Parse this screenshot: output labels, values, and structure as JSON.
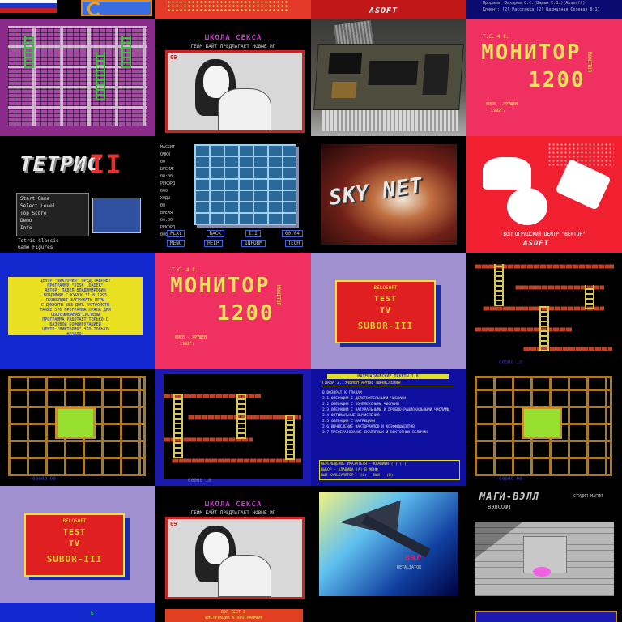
{
  "row0": {
    "top_right_line1": "Продажа: Захаров С.С.(Вадим Е.В.)(Abssoft)",
    "top_right_line2": "Клиент: [2] Расставка [2] Шахматная Сетевая 8:1)",
    "absoft_logo": "ASOFT"
  },
  "school_screen": {
    "header": "ШКОЛА СЕКСА",
    "subtitle": "ГЕЙМ БАЙТ ПРЕДЛАГАЕТ НОВЫЕ ИГ",
    "corner_num": "69"
  },
  "monitor_screen": {
    "top_label": "T.C. 4 C.",
    "title": "МОНИТОР",
    "number": "1200",
    "side_text": "MONITOR",
    "footer1": "КИЕВ - ХРУЩЕВ",
    "footer2": "1992Г."
  },
  "tetris_screen": {
    "logo": "ТЕТРИС",
    "roman": "II",
    "menu_items": [
      "Start Game",
      "Select Level",
      "Top Score",
      "Demo",
      "Info"
    ],
    "footer1": "Tetris Classic",
    "footer2": "Game Figures"
  },
  "puzzle_screen": {
    "side_labels": [
      "МАССИТ",
      "ОЧКИ",
      "ВРЕМЯ",
      "РЕКОРД",
      "ХОДЫ",
      "ВРЕМЯ",
      "РЕКОРД"
    ],
    "side_values": [
      "",
      "00",
      "00:00",
      "000",
      "00",
      "00:00",
      "000"
    ],
    "buttons_row1": [
      "PLAY",
      "BACK",
      "III",
      "00:04"
    ],
    "buttons_row2": [
      "MENU",
      "HELP",
      "INFORM",
      "TECH"
    ]
  },
  "skynet_screen": {
    "title": "SKY NET"
  },
  "vector_screen": {
    "footer": "ВОЛГОГРАДСКИЙ ЦЕНТР \"ВЕКТОР\"",
    "brand": "ASOFT"
  },
  "victoria_screen": {
    "lines": [
      "ЦЕНТР \"ВИКТОРИЯ\" ПРЕДСТАВЛЯЕТ",
      "ПРОГРАММУ \"DISK LOADER\"",
      "АВТОР: ПАВЕЛ ВЛАДИМИРОВИЧ",
      "ВЛАДИМИР Г.КУРСК 31.8.1995",
      "ПОЗВОЛЯЕТ ЗАГРУЖАТЬ ИГРЫ",
      "С ДИСКЕТЫ БЕЗ ДОП. УСТРОЙСТВ",
      "ТАКЖЕ ЭТО ПРОГРАММА НУЖНА ДЛЯ",
      "ОБСЛУЖИВАНИЯ СИСТЕМЫ",
      "ПРОГРАММА РАБОТАЕТ ТОЛЬКО С",
      "БАЗОВОЙ КОНФИГУРАЦИЕЙ",
      "ЦЕНТР \"ВИКТОРИЯ\" ЭТО ТОЛЬКО",
      "НАЧАЛО!"
    ]
  },
  "test_screen": {
    "header": "BELOSOFT",
    "line1": "TEST",
    "line2": "TV",
    "line3": "SUBOR-III"
  },
  "math_screen": {
    "title": "МАТЕМАТИЧЕСКИЕ ПАКЕТЫ 1.0",
    "subtitle": "ГЛАВА 2. ЭЛЕМЕНТАРНЫЕ ВЫЧИСЛЕНИЯ",
    "items": [
      "0 ВОЗВРАТ К ГЛАВАМ",
      "2.1 ОПЕРАЦИИ С ДЕЙСТВИТЕЛЬНЫМИ ЧИСЛАМИ",
      "2.2 ОПЕРАЦИИ С КОМПЛЕКСНЫМИ ЧИСЛАМИ",
      "2.3 ОПЕРАЦИИ С НАТУРАЛЬНЫМИ И ДРОБНО-РАЦИОНАЛЬНЫМИ ЧИСЛАМИ",
      "2.4 ОПТИМАЛЬНЫЕ ВЫЧИСЛЕНИЯ",
      "2.5 ОПЕРАЦИИ С МАТРИЦАМИ",
      "2.6 ВЫЧИСЛЕНИЕ ФАКТОРИАЛОВ И КОЭФФИЦИЕНТОВ",
      "2.7 ПРЕОБРАЗОВАНИЕ СКАЛЯРНЫХ И ВЕКТОРНЫХ ВЕЛИЧИН"
    ],
    "footer1": "ПЕРЕМЕЩЕНИЕ УКАЗАТЕЛЯ - КЛАВИШИ (↑) (↓)",
    "footer2": "ВЫБОР - КЛАВИША (A) В МЕНЮ",
    "footer3": "ВЫЙ КАЛЬКУЛЯТОР - (C) - ВЫХ - (B)"
  },
  "game_score": {
    "text1": "00000 10",
    "text2": "00000 90"
  },
  "jet_screen": {
    "title": "RETALIATOR",
    "logo": "ВЭЛ"
  },
  "maze_screen": {
    "title": "МАГИ-ВЭЛЛ",
    "subtitle": "ВЭЛСОФТ",
    "right_text": "СТУДИЯ МАГИЯ"
  },
  "row6": {
    "left_text": "Б",
    "mid_line1": "ВЭЛ ТЕСТ 2",
    "mid_line2": "ИНСТРУКЦИИ К ПРОГРАММАМ"
  }
}
